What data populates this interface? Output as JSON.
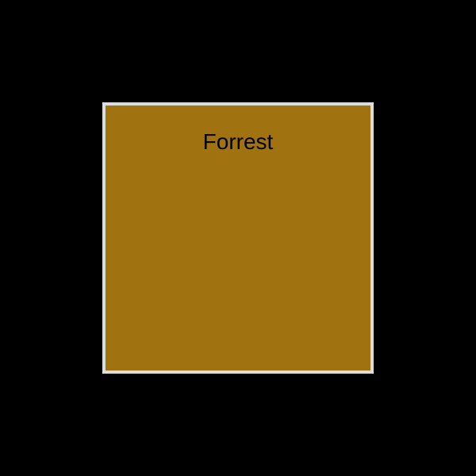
{
  "swatch": {
    "name": "Forrest",
    "fill_color": "#a07310",
    "border_color": "#dcdcdc",
    "text_color": "#000000"
  },
  "background_color": "#000000"
}
